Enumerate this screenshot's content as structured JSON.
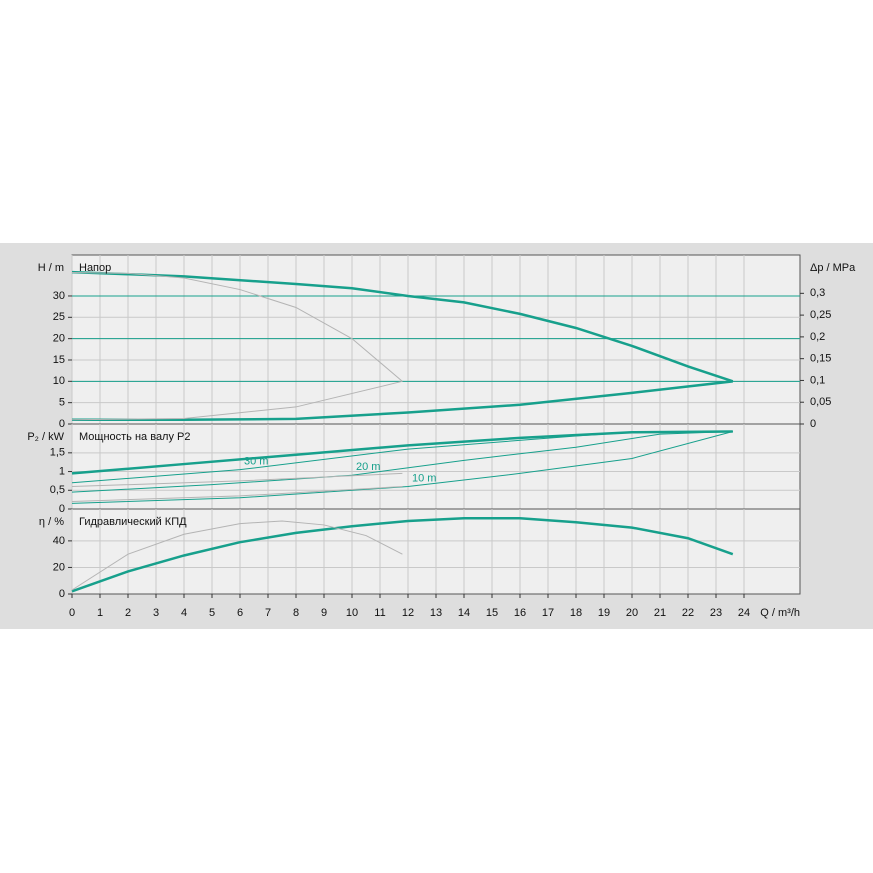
{
  "chart_data": [
    {
      "type": "line",
      "title": "Напор",
      "ylabel": "H / m",
      "y2label": "Δp / MPa",
      "xlim": [
        0,
        26
      ],
      "ylim": [
        0,
        39.6
      ],
      "yticks": [
        0,
        5,
        10,
        15,
        20,
        25,
        30
      ],
      "y2lim": [
        0,
        0.388
      ],
      "y2ticks": [
        0,
        {
          "value": 0.05,
          "label": "0,05"
        },
        {
          "value": 0.1,
          "label": "0,1"
        },
        {
          "value": 0.15,
          "label": "0,15"
        },
        {
          "value": 0.2,
          "label": "0,2"
        },
        {
          "value": 0.25,
          "label": "0,25"
        },
        {
          "value": 0.3,
          "label": "0,3"
        }
      ],
      "grid": true,
      "hlines": [
        10,
        20,
        30
      ],
      "hline_color": "#17a08c",
      "series": [
        {
          "color": "#17a08c",
          "line_width": 2.5,
          "x": [
            0,
            4,
            8,
            10,
            12,
            14,
            16,
            18,
            20,
            22,
            23.6
          ],
          "values": [
            35.6,
            34.6,
            32.8,
            31.8,
            30,
            28.5,
            25.8,
            22.5,
            18.3,
            13.5,
            10
          ]
        },
        {
          "color": "#17a08c",
          "line_width": 2.5,
          "x": [
            0,
            4,
            8,
            12,
            16,
            20,
            23.6
          ],
          "values": [
            1,
            1,
            1.2,
            2.7,
            4.5,
            7.3,
            10
          ]
        },
        {
          "color": "#b4b4b4",
          "line_width": 1,
          "x": [
            0,
            2,
            4,
            6,
            8,
            10,
            11.8
          ],
          "values": [
            35.5,
            35.3,
            34.2,
            31.5,
            27.3,
            20,
            10
          ]
        },
        {
          "color": "#b4b4b4",
          "line_width": 1,
          "x": [
            0,
            4,
            8,
            11.8
          ],
          "values": [
            1,
            1.3,
            4,
            10
          ]
        }
      ]
    },
    {
      "type": "line",
      "title": "Мощность на валу P2",
      "ylabel": "P₂ / kW",
      "xlim": [
        0,
        26
      ],
      "ylim": [
        0,
        2.27
      ],
      "yticks": [
        0,
        {
          "value": 0.5,
          "label": "0,5"
        },
        1,
        {
          "value": 1.5,
          "label": "1,5"
        }
      ],
      "grid": true,
      "series": [
        {
          "color": "#17a08c",
          "line_width": 2.5,
          "x": [
            0,
            4,
            8,
            12,
            16,
            20,
            23.6
          ],
          "values": [
            0.95,
            1.2,
            1.45,
            1.7,
            1.9,
            2.05,
            2.07
          ]
        },
        {
          "name": "30 m",
          "color": "#17a08c",
          "line_width": 1,
          "x": [
            0,
            6,
            12,
            18,
            20
          ],
          "values": [
            0.7,
            1.05,
            1.6,
            1.95,
            2.05
          ]
        },
        {
          "name": "20 m",
          "color": "#17a08c",
          "line_width": 1,
          "x": [
            0,
            5,
            10,
            14,
            18,
            21,
            23.6
          ],
          "values": [
            0.45,
            0.65,
            0.9,
            1.3,
            1.65,
            2.0,
            2.07
          ]
        },
        {
          "name": "10 m",
          "color": "#17a08c",
          "line_width": 1,
          "x": [
            0,
            6,
            12,
            16,
            20,
            23.6
          ],
          "values": [
            0.15,
            0.3,
            0.6,
            0.95,
            1.35,
            2.07
          ]
        },
        {
          "color": "#b4b4b4",
          "line_width": 1,
          "x": [
            0,
            6,
            11.8
          ],
          "values": [
            0.6,
            0.75,
            0.95
          ]
        },
        {
          "color": "#b4b4b4",
          "line_width": 1,
          "x": [
            0,
            6,
            11.8
          ],
          "values": [
            0.2,
            0.35,
            0.6
          ]
        }
      ]
    },
    {
      "type": "line",
      "title": "Гидравлический КПД",
      "ylabel": "η / %",
      "xlabel": "Q / m³/h",
      "xlim": [
        0,
        26
      ],
      "xticks": [
        0,
        1,
        2,
        3,
        4,
        5,
        6,
        7,
        8,
        9,
        10,
        11,
        12,
        13,
        14,
        15,
        16,
        17,
        18,
        19,
        20,
        21,
        22,
        23,
        24
      ],
      "ylim": [
        0,
        64
      ],
      "yticks": [
        0,
        20,
        40
      ],
      "grid": true,
      "series": [
        {
          "color": "#17a08c",
          "line_width": 2.5,
          "x": [
            0,
            2,
            4,
            6,
            8,
            10,
            12,
            14,
            16,
            18,
            20,
            22,
            23.6
          ],
          "values": [
            2,
            17,
            29,
            39,
            46,
            51,
            55,
            57,
            57,
            54,
            50,
            42,
            30
          ]
        },
        {
          "color": "#b4b4b4",
          "line_width": 1,
          "x": [
            0,
            2,
            4,
            6,
            7.5,
            9,
            10.5,
            11.8
          ],
          "values": [
            3,
            30,
            45,
            53,
            55,
            52,
            44,
            30
          ]
        }
      ]
    }
  ]
}
